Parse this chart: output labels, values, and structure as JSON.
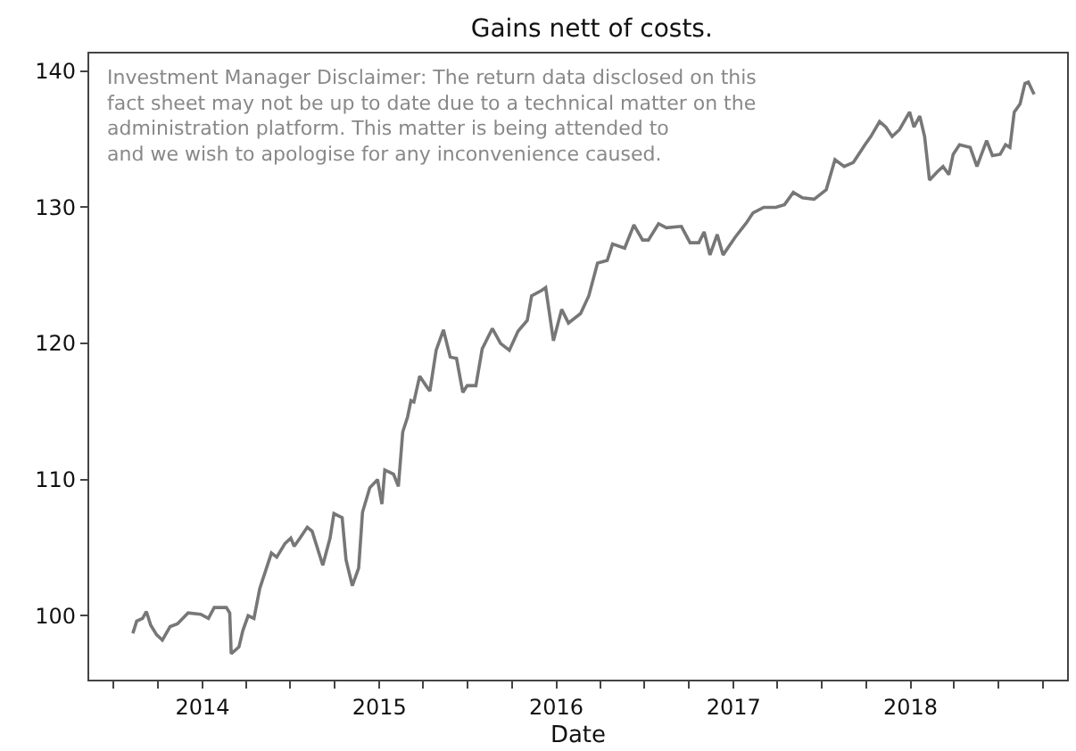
{
  "chart_data": {
    "type": "line",
    "title": "Gains nett of costs.",
    "xlabel": "Date",
    "x": [
      "2013-08-10",
      "2013-08-18",
      "2013-08-30",
      "2013-09-07",
      "2013-09-16",
      "2013-09-28",
      "2013-10-10",
      "2013-10-26",
      "2013-11-10",
      "2013-12-02",
      "2013-12-28",
      "2014-01-13",
      "2014-01-25",
      "2014-02-19",
      "2014-02-26",
      "2014-03-01",
      "2014-03-17",
      "2014-03-25",
      "2014-04-05",
      "2014-04-17",
      "2014-04-29",
      "2014-05-23",
      "2014-06-03",
      "2014-06-20",
      "2014-07-02",
      "2014-07-09",
      "2014-07-21",
      "2014-08-05",
      "2014-08-15",
      "2014-09-06",
      "2014-09-21",
      "2014-09-29",
      "2014-10-16",
      "2014-10-24",
      "2014-11-06",
      "2014-11-19",
      "2014-11-27",
      "2014-12-12",
      "2014-12-28",
      "2015-01-06",
      "2015-01-12",
      "2015-01-30",
      "2015-02-09",
      "2015-02-18",
      "2015-02-28",
      "2015-03-07",
      "2015-03-13",
      "2015-03-25",
      "2015-04-07",
      "2015-04-15",
      "2015-04-28",
      "2015-05-13",
      "2015-05-27",
      "2015-06-09",
      "2015-06-22",
      "2015-07-01",
      "2015-07-19",
      "2015-08-01",
      "2015-08-22",
      "2015-09-08",
      "2015-09-26",
      "2015-10-14",
      "2015-11-02",
      "2015-11-11",
      "2015-12-02",
      "2015-12-10",
      "2015-12-26",
      "2016-01-12",
      "2016-01-26",
      "2016-02-20",
      "2016-03-08",
      "2016-03-26",
      "2016-04-15",
      "2016-04-26",
      "2016-05-21",
      "2016-06-09",
      "2016-06-27",
      "2016-07-09",
      "2016-07-30",
      "2016-08-15",
      "2016-09-15",
      "2016-10-03",
      "2016-10-21",
      "2016-11-01",
      "2016-11-13",
      "2016-11-28",
      "2016-12-10",
      "2017-01-04",
      "2017-01-28",
      "2017-02-10",
      "2017-03-04",
      "2017-03-29",
      "2017-04-16",
      "2017-05-04",
      "2017-05-23",
      "2017-06-16",
      "2017-07-11",
      "2017-07-29",
      "2017-08-17",
      "2017-09-05",
      "2017-09-29",
      "2017-10-11",
      "2017-10-29",
      "2017-11-11",
      "2017-11-24",
      "2017-12-09",
      "2017-12-30",
      "2018-01-08",
      "2018-01-20",
      "2018-01-30",
      "2018-02-09",
      "2018-02-25",
      "2018-03-09",
      "2018-03-21",
      "2018-03-30",
      "2018-04-12",
      "2018-05-04",
      "2018-05-18",
      "2018-06-07",
      "2018-06-19",
      "2018-07-05",
      "2018-07-16",
      "2018-07-25",
      "2018-08-03",
      "2018-08-15",
      "2018-08-25",
      "2018-09-01",
      "2018-09-13"
    ],
    "series": [
      {
        "color": "#777777",
        "values": [
          98.7,
          99.6,
          99.8,
          100.3,
          99.3,
          98.6,
          98.2,
          99.2,
          99.4,
          100.2,
          100.1,
          99.8,
          100.6,
          100.6,
          100.2,
          97.2,
          97.7,
          98.9,
          100.0,
          99.8,
          102.0,
          104.6,
          104.3,
          105.3,
          105.7,
          105.1,
          105.7,
          106.5,
          106.2,
          103.7,
          105.7,
          107.5,
          107.2,
          104.1,
          102.2,
          103.5,
          107.6,
          109.4,
          110.0,
          108.2,
          110.7,
          110.4,
          109.5,
          113.5,
          114.6,
          115.8,
          115.7,
          117.6,
          116.9,
          116.5,
          119.5,
          121.0,
          119.0,
          118.9,
          116.4,
          116.9,
          116.9,
          119.6,
          121.1,
          120.0,
          119.5,
          120.9,
          121.7,
          123.5,
          123.9,
          124.1,
          120.2,
          122.5,
          121.5,
          122.2,
          123.5,
          125.9,
          126.1,
          127.3,
          127.0,
          128.7,
          127.6,
          127.6,
          128.8,
          128.5,
          128.6,
          127.4,
          127.4,
          128.2,
          126.5,
          128.0,
          126.5,
          127.8,
          128.9,
          129.6,
          130.0,
          130.0,
          130.2,
          131.1,
          130.7,
          130.6,
          131.3,
          133.5,
          133.0,
          133.3,
          134.6,
          135.2,
          136.3,
          135.9,
          135.2,
          135.7,
          137.0,
          135.9,
          136.7,
          135.2,
          132.0,
          132.6,
          133.0,
          132.4,
          133.9,
          134.6,
          134.4,
          133.0,
          134.9,
          133.8,
          133.9,
          134.6,
          134.4,
          137.0,
          137.6,
          139.1,
          139.2,
          138.3
        ]
      }
    ],
    "xlim": [
      "2013-05-12",
      "2018-11-20"
    ],
    "xticks": [
      {
        "value": "2013-07-01",
        "label": null
      },
      {
        "value": "2013-10-01",
        "label": null
      },
      {
        "value": "2014-01-01",
        "label": "2014"
      },
      {
        "value": "2014-04-01",
        "label": null
      },
      {
        "value": "2014-07-01",
        "label": null
      },
      {
        "value": "2014-10-01",
        "label": null
      },
      {
        "value": "2015-01-01",
        "label": "2015"
      },
      {
        "value": "2015-04-01",
        "label": null
      },
      {
        "value": "2015-07-01",
        "label": null
      },
      {
        "value": "2015-10-01",
        "label": null
      },
      {
        "value": "2016-01-01",
        "label": "2016"
      },
      {
        "value": "2016-04-01",
        "label": null
      },
      {
        "value": "2016-07-01",
        "label": null
      },
      {
        "value": "2016-10-01",
        "label": null
      },
      {
        "value": "2017-01-01",
        "label": "2017"
      },
      {
        "value": "2017-04-01",
        "label": null
      },
      {
        "value": "2017-07-01",
        "label": null
      },
      {
        "value": "2017-10-01",
        "label": null
      },
      {
        "value": "2018-01-01",
        "label": "2018"
      },
      {
        "value": "2018-04-01",
        "label": null
      },
      {
        "value": "2018-07-01",
        "label": null
      },
      {
        "value": "2018-10-01",
        "label": null
      }
    ],
    "ylim": [
      95.3,
      141.3
    ],
    "yticks": [
      100,
      110,
      120,
      130,
      140
    ],
    "marker": "none",
    "line_style": "solid",
    "annotations": [
      "Investment Manager Disclaimer: The return data disclosed on this\nfact sheet may not be up to date due to a technical matter on the\nadministration platform. This matter is being attended to\nand we wish to apologise for any inconvenience caused."
    ]
  }
}
